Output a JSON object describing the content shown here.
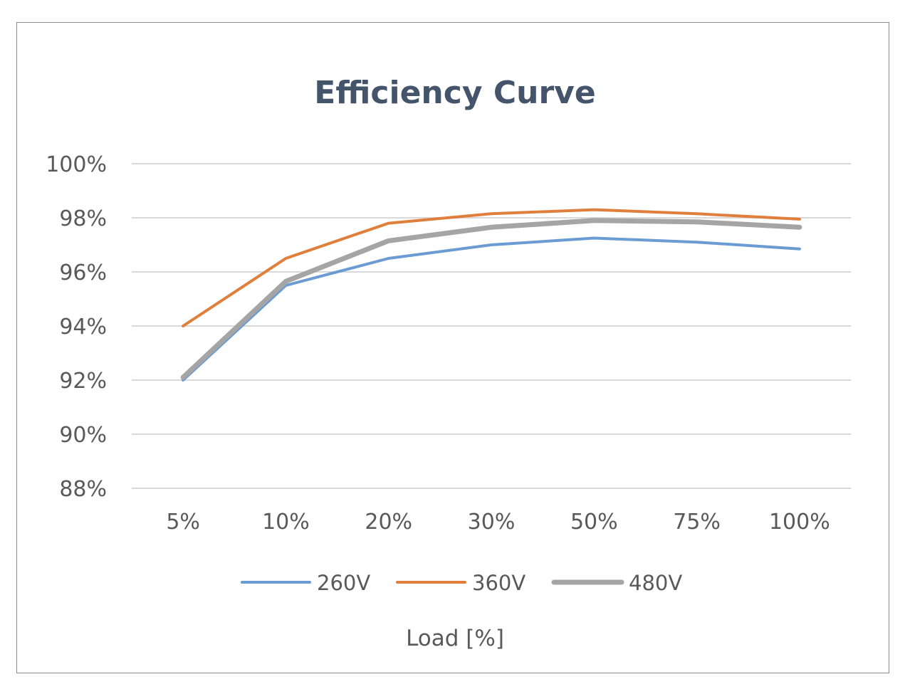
{
  "chart_data": {
    "type": "line",
    "title": "Efficiency Curve",
    "xlabel": "Load [%]",
    "ylabel": "",
    "categories": [
      "5%",
      "10%",
      "20%",
      "30%",
      "50%",
      "75%",
      "100%"
    ],
    "ylim": [
      88,
      100
    ],
    "yticks": [
      88,
      90,
      92,
      94,
      96,
      98,
      100
    ],
    "ytick_labels": [
      "88%",
      "90%",
      "92%",
      "94%",
      "96%",
      "98%",
      "100%"
    ],
    "grid": true,
    "legend_position": "bottom",
    "series": [
      {
        "name": "260V",
        "color": "#6a9bd3",
        "values": [
          92.0,
          95.5,
          96.5,
          97.0,
          97.25,
          97.1,
          96.85
        ]
      },
      {
        "name": "360V",
        "color": "#e07f3b",
        "values": [
          94.0,
          96.5,
          97.8,
          98.15,
          98.3,
          98.15,
          97.95
        ]
      },
      {
        "name": "480V",
        "color": "#a5a5a5",
        "values": [
          92.1,
          95.65,
          97.15,
          97.65,
          97.9,
          97.85,
          97.65
        ]
      }
    ]
  }
}
